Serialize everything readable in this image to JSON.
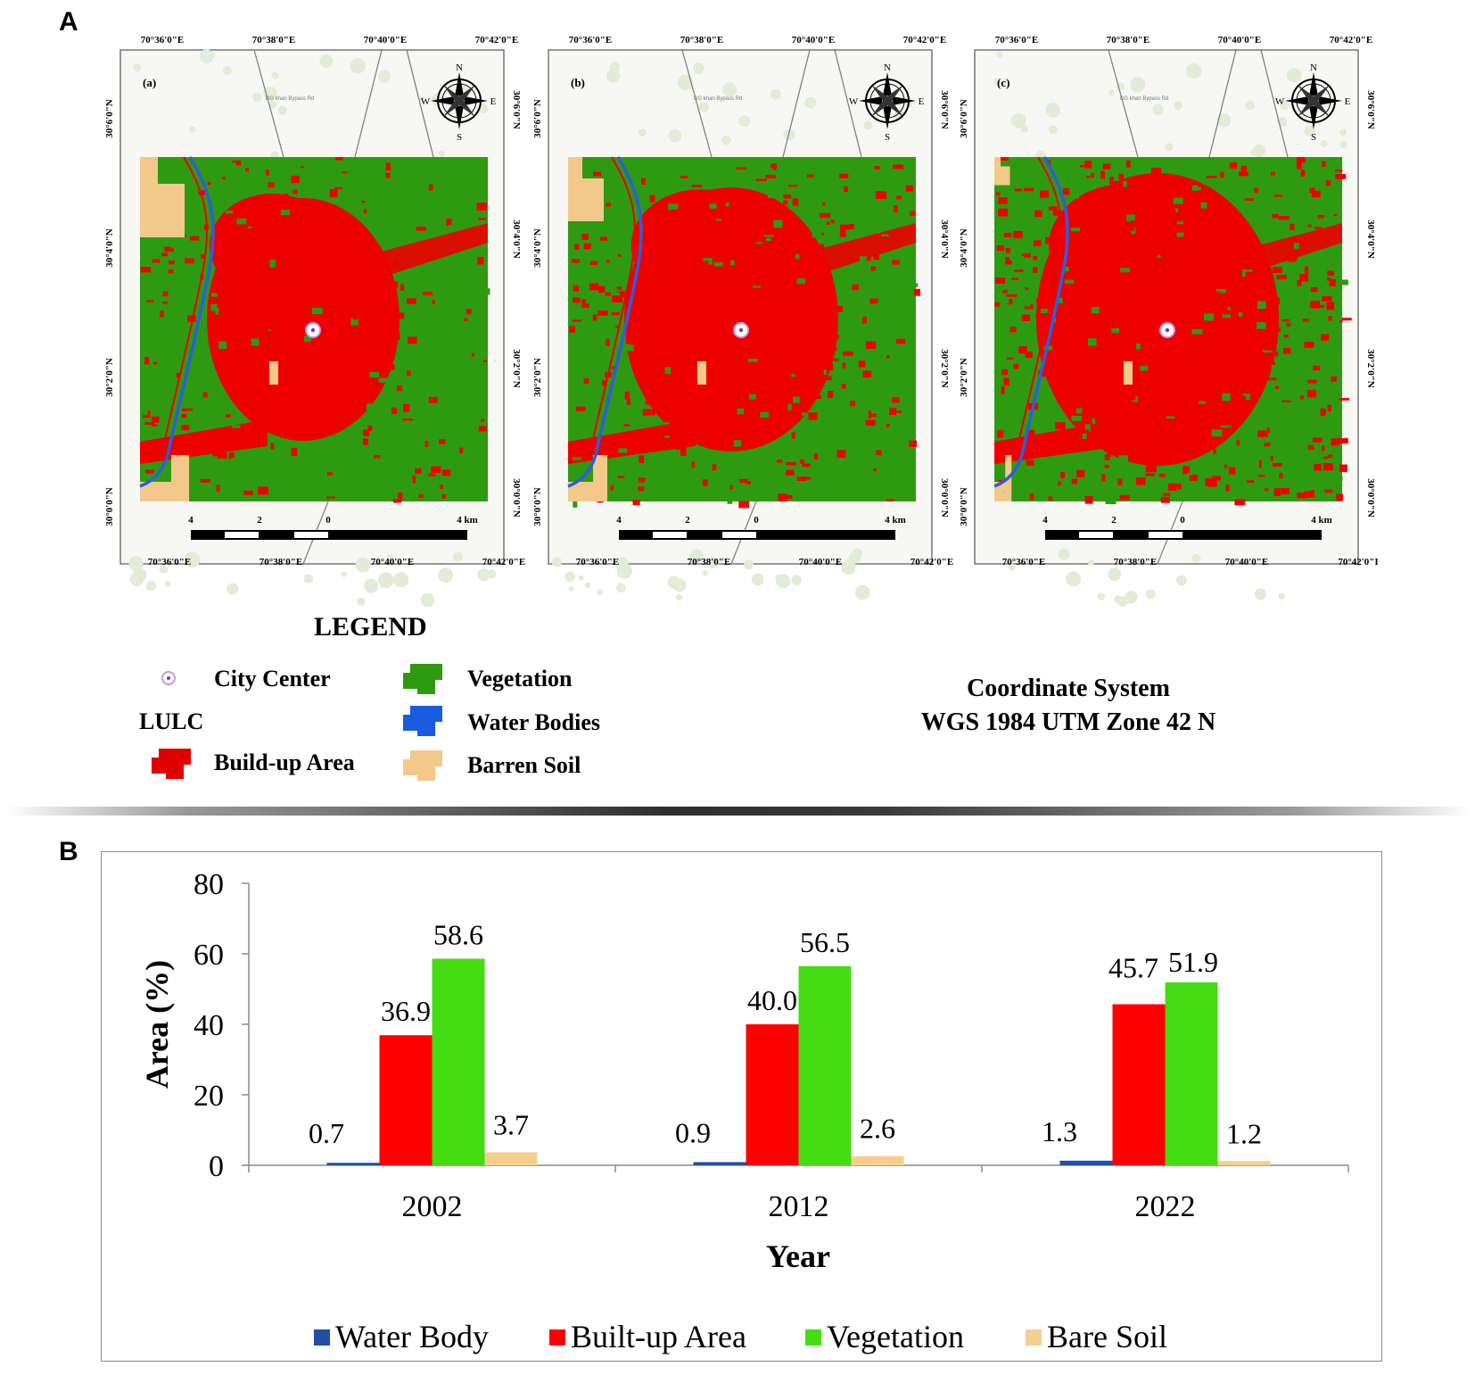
{
  "panel_a_label": "A",
  "panel_b_label": "B",
  "maps": [
    {
      "panel_tag": "(a)",
      "top_lon_labels": [
        "70°36'0\"E",
        "70°38'0\"E",
        "70°40'0\"E",
        "70°42'0\"E"
      ],
      "bottom_lon_labels": [
        "70°36'0\"E",
        "70°38'0\"E",
        "70°40'0\"E",
        "70°42'0\"E"
      ],
      "lat_labels": [
        "30°6'0\"N",
        "30°4'0\"N",
        "30°2'0\"N",
        "30°0'0\"N"
      ],
      "scale_labels": [
        "4",
        "2",
        "0",
        "4 km"
      ],
      "road_label": "DG khan Bypass Rd",
      "compass": {
        "n": "N",
        "s": "S",
        "e": "E",
        "w": "W"
      }
    },
    {
      "panel_tag": "(b)",
      "top_lon_labels": [
        "70°36'0\"E",
        "70°38'0\"E",
        "70°40'0\"E",
        "70°42'0\"E"
      ],
      "bottom_lon_labels": [
        "70°36'0\"E",
        "70°38'0\"E",
        "70°40'0\"E",
        "70°42'0\"E"
      ],
      "lat_labels": [
        "30°6'0\"N",
        "30°4'0\"N",
        "30°2'0\"N",
        "30°0'0\"N"
      ],
      "scale_labels": [
        "4",
        "2",
        "0",
        "4 km"
      ],
      "road_label": "DG khan Bypass Rd",
      "compass": {
        "n": "N",
        "s": "S",
        "e": "E",
        "w": "W"
      }
    },
    {
      "panel_tag": "(c)",
      "top_lon_labels": [
        "70°36'0\"E",
        "70°38'0\"E",
        "70°40'0\"E",
        "70°42'0\"E"
      ],
      "bottom_lon_labels": [
        "70°36'0\"E",
        "70°38'0\"E",
        "70°40'0\"E",
        "70°42'0\"I"
      ],
      "lat_labels": [
        "30°6'0\"N",
        "30°4'0\"N",
        "30°2'0\"N",
        "30°0'0\"N"
      ],
      "scale_labels": [
        "4",
        "2",
        "0",
        "4 km"
      ],
      "road_label": "DG khan Bypass Rd",
      "compass": {
        "n": "N",
        "s": "S",
        "e": "E",
        "w": "W"
      }
    }
  ],
  "map_legend": {
    "title": "LEGEND",
    "city_center": "City Center",
    "lulc": "LULC",
    "buildup": "Build-up Area",
    "vegetation": "Vegetation",
    "water": "Water Bodies",
    "barren": "Barren Soil",
    "coord_line1": "Coordinate System",
    "coord_line2": "WGS 1984 UTM Zone 42 N"
  },
  "colors": {
    "vegetation": "#2e9a10",
    "buildup": "#ee0000",
    "water": "#2f5ddc",
    "barren": "#f2c98b",
    "chart_water": "#1f4fa8",
    "chart_buildup": "#ff0000",
    "chart_vegetation": "#44dd11",
    "chart_bare": "#f6cf8e"
  },
  "chart_data": {
    "type": "bar",
    "categories": [
      "2002",
      "2012",
      "2022"
    ],
    "series": [
      {
        "name": "Water Body",
        "values": [
          0.7,
          0.9,
          1.3
        ]
      },
      {
        "name": "Built-up Area",
        "values": [
          36.9,
          40.0,
          45.7
        ]
      },
      {
        "name": "Vegetation",
        "values": [
          58.6,
          56.5,
          51.9
        ]
      },
      {
        "name": "Bare Soil",
        "values": [
          3.7,
          2.6,
          1.2
        ]
      }
    ],
    "value_labels": [
      [
        "0.7",
        "0.9",
        "1.3"
      ],
      [
        "36.9",
        "40.0",
        "45.7"
      ],
      [
        "58.6",
        "56.5",
        "51.9"
      ],
      [
        "3.7",
        "2.6",
        "1.2"
      ]
    ],
    "xlabel": "Year",
    "ylabel": "Area (%)",
    "ylim": [
      0,
      80
    ],
    "yticks": [
      "0",
      "20",
      "40",
      "60",
      "80"
    ],
    "legend_position": "bottom",
    "grid": false
  }
}
